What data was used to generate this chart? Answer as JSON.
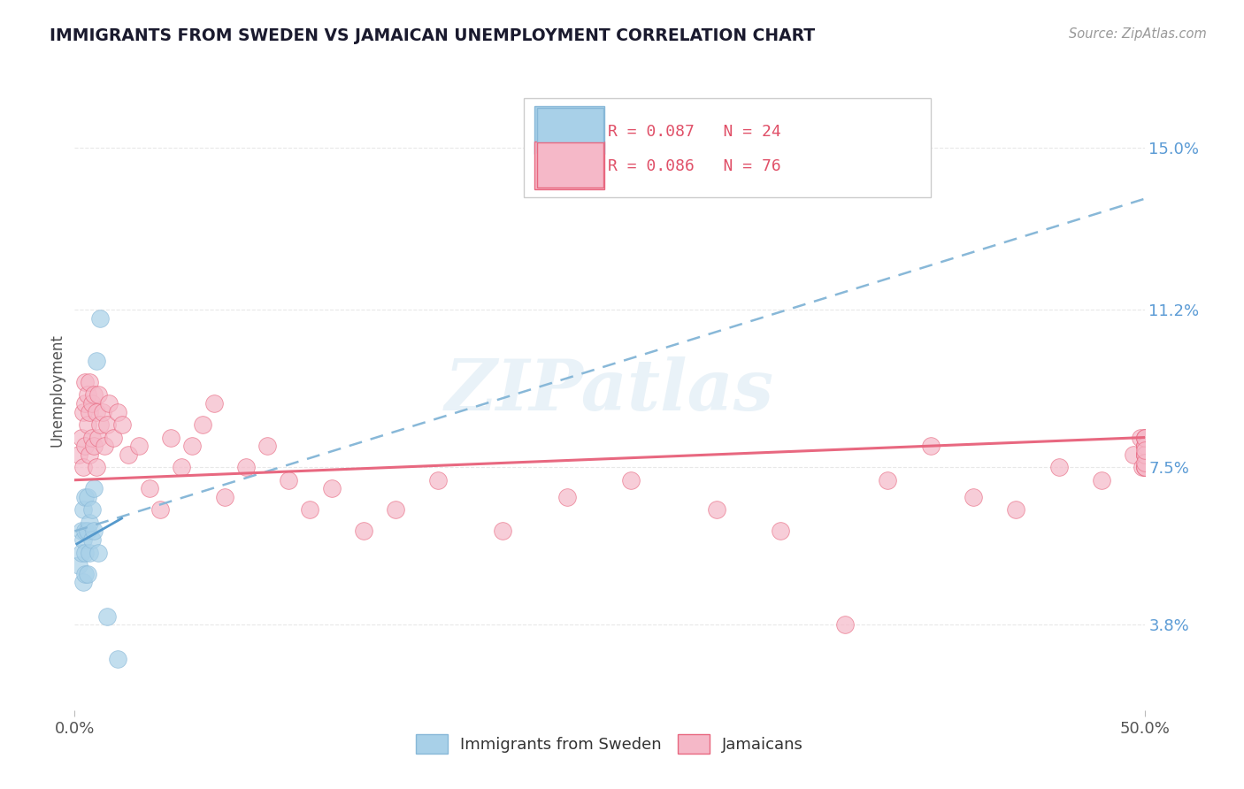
{
  "title": "IMMIGRANTS FROM SWEDEN VS JAMAICAN UNEMPLOYMENT CORRELATION CHART",
  "source_text": "Source: ZipAtlas.com",
  "ylabel": "Unemployment",
  "watermark": "ZIPatlas",
  "legend_sweden": "Immigrants from Sweden",
  "legend_jamaica": "Jamaicans",
  "r_sweden": "R = 0.087",
  "n_sweden": "N = 24",
  "r_jamaica": "R = 0.086",
  "n_jamaica": "N = 76",
  "xlim": [
    0.0,
    0.5
  ],
  "ylim": [
    0.018,
    0.168
  ],
  "yticks": [
    0.038,
    0.075,
    0.112,
    0.15
  ],
  "ytick_labels": [
    "3.8%",
    "7.5%",
    "11.2%",
    "15.0%"
  ],
  "xticks": [
    0.0,
    0.5
  ],
  "xtick_labels": [
    "0.0%",
    "50.0%"
  ],
  "color_sweden": "#A8D0E8",
  "color_jamaica": "#F5B8C8",
  "trendline_sweden_color": "#88B8D8",
  "trendline_jamaica_color": "#E86880",
  "background_color": "#FFFFFF",
  "grid_color": "#E8E8E8",
  "title_color": "#1A1A2E",
  "sweden_x": [
    0.002,
    0.003,
    0.003,
    0.004,
    0.004,
    0.004,
    0.005,
    0.005,
    0.005,
    0.005,
    0.006,
    0.006,
    0.006,
    0.007,
    0.007,
    0.008,
    0.008,
    0.009,
    0.009,
    0.01,
    0.011,
    0.012,
    0.015,
    0.02
  ],
  "sweden_y": [
    0.052,
    0.055,
    0.06,
    0.048,
    0.058,
    0.065,
    0.05,
    0.055,
    0.06,
    0.068,
    0.05,
    0.06,
    0.068,
    0.055,
    0.062,
    0.058,
    0.065,
    0.06,
    0.07,
    0.1,
    0.055,
    0.11,
    0.04,
    0.03
  ],
  "jamaica_x": [
    0.002,
    0.003,
    0.004,
    0.004,
    0.005,
    0.005,
    0.005,
    0.006,
    0.006,
    0.007,
    0.007,
    0.007,
    0.008,
    0.008,
    0.009,
    0.009,
    0.01,
    0.01,
    0.011,
    0.011,
    0.012,
    0.013,
    0.014,
    0.015,
    0.016,
    0.018,
    0.02,
    0.022,
    0.025,
    0.03,
    0.035,
    0.04,
    0.045,
    0.05,
    0.055,
    0.06,
    0.065,
    0.07,
    0.08,
    0.09,
    0.1,
    0.11,
    0.12,
    0.135,
    0.15,
    0.17,
    0.2,
    0.23,
    0.26,
    0.3,
    0.33,
    0.36,
    0.38,
    0.4,
    0.42,
    0.44,
    0.46,
    0.48,
    0.495,
    0.498,
    0.499,
    0.5,
    0.5,
    0.5,
    0.5,
    0.5,
    0.5,
    0.5,
    0.5,
    0.5,
    0.5,
    0.5,
    0.5,
    0.5,
    0.5,
    0.5
  ],
  "jamaica_y": [
    0.078,
    0.082,
    0.075,
    0.088,
    0.08,
    0.09,
    0.095,
    0.085,
    0.092,
    0.078,
    0.088,
    0.095,
    0.082,
    0.09,
    0.08,
    0.092,
    0.075,
    0.088,
    0.082,
    0.092,
    0.085,
    0.088,
    0.08,
    0.085,
    0.09,
    0.082,
    0.088,
    0.085,
    0.078,
    0.08,
    0.07,
    0.065,
    0.082,
    0.075,
    0.08,
    0.085,
    0.09,
    0.068,
    0.075,
    0.08,
    0.072,
    0.065,
    0.07,
    0.06,
    0.065,
    0.072,
    0.06,
    0.068,
    0.072,
    0.065,
    0.06,
    0.038,
    0.072,
    0.08,
    0.068,
    0.065,
    0.075,
    0.072,
    0.078,
    0.082,
    0.075,
    0.078,
    0.08,
    0.075,
    0.082,
    0.078,
    0.08,
    0.075,
    0.082,
    0.078,
    0.08,
    0.075,
    0.078,
    0.082,
    0.076,
    0.079
  ],
  "sweden_trend_x0": 0.0,
  "sweden_trend_y0": 0.06,
  "sweden_trend_x1": 0.5,
  "sweden_trend_y1": 0.138,
  "jamaica_trend_x0": 0.0,
  "jamaica_trend_y0": 0.072,
  "jamaica_trend_x1": 0.5,
  "jamaica_trend_y1": 0.082,
  "sweden_line_x0": 0.001,
  "sweden_line_y0": 0.057,
  "sweden_line_x1": 0.022,
  "sweden_line_y1": 0.063
}
